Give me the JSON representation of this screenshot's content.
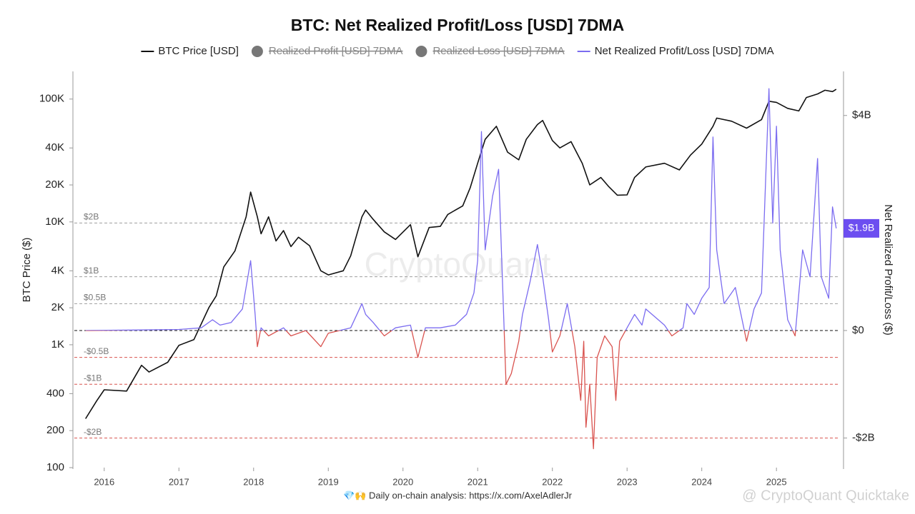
{
  "chart_data": {
    "type": "line",
    "title": "BTC: Net Realized Profit/Loss [USD] 7DMA",
    "y_label": "BTC Price ($)",
    "y2_label": "Net Realized Profit/Loss ($)",
    "watermark": "CryptoQuant",
    "footer": "💎🙌 Daily on-chain analysis: https://x.com/AxelAdlerJr",
    "footer_right": "@ CryptoQuant Quicktake",
    "xlim": [
      2015.6,
      2025.85
    ],
    "xticks": [
      2016,
      2017,
      2018,
      2019,
      2020,
      2021,
      2022,
      2023,
      2024,
      2025
    ],
    "yscale": "log",
    "ylim": [
      100,
      168000
    ],
    "yticks": [
      {
        "value": 100000,
        "label": "100K"
      },
      {
        "value": 40000,
        "label": "40K"
      },
      {
        "value": 20000,
        "label": "20K"
      },
      {
        "value": 10000,
        "label": "10K"
      },
      {
        "value": 4000,
        "label": "4K"
      },
      {
        "value": 2000,
        "label": "2K"
      },
      {
        "value": 1000,
        "label": "1K"
      },
      400,
      200,
      100
    ],
    "y2lim": [
      -2.55,
      4.82
    ],
    "y2ticks": [
      {
        "value": 4,
        "label": "$4B"
      },
      {
        "value": 0,
        "label": "$0"
      },
      {
        "value": -2,
        "label": "-$2B"
      }
    ],
    "reference_lines": [
      {
        "value": 2,
        "label": "$2B",
        "color": "#9e9e9e"
      },
      {
        "value": 1,
        "label": "$1B",
        "color": "#9e9e9e"
      },
      {
        "value": 0.5,
        "label": "$0.5B",
        "color": "#9e9e9e"
      },
      {
        "value": -0.5,
        "label": "-$0.5B",
        "color": "#d9534f"
      },
      {
        "value": -1,
        "label": "-$1B",
        "color": "#d9534f"
      },
      {
        "value": -2,
        "label": "-$2B",
        "color": "#d9534f"
      }
    ],
    "last_value_label": {
      "value": 1.9,
      "label": "$1.9B",
      "color": "#6c4ef0"
    },
    "series": [
      {
        "name": "BTC Price [USD]",
        "color": "#111111",
        "axis": "y",
        "x": [
          2015.75,
          2015.9,
          2016.0,
          2016.3,
          2016.5,
          2016.6,
          2016.85,
          2017.0,
          2017.2,
          2017.4,
          2017.5,
          2017.6,
          2017.75,
          2017.9,
          2017.96,
          2018.05,
          2018.1,
          2018.2,
          2018.3,
          2018.4,
          2018.5,
          2018.6,
          2018.75,
          2018.9,
          2019.0,
          2019.2,
          2019.3,
          2019.45,
          2019.5,
          2019.6,
          2019.75,
          2019.9,
          2020.1,
          2020.2,
          2020.35,
          2020.5,
          2020.6,
          2020.8,
          2020.9,
          2021.0,
          2021.1,
          2021.25,
          2021.4,
          2021.55,
          2021.65,
          2021.8,
          2021.87,
          2022.0,
          2022.1,
          2022.25,
          2022.4,
          2022.5,
          2022.65,
          2022.75,
          2022.87,
          2023.0,
          2023.1,
          2023.25,
          2023.5,
          2023.7,
          2023.85,
          2024.0,
          2024.15,
          2024.2,
          2024.4,
          2024.6,
          2024.8,
          2024.9,
          2025.0,
          2025.15,
          2025.3,
          2025.4,
          2025.55,
          2025.65,
          2025.75,
          2025.8
        ],
        "values": [
          250,
          350,
          430,
          420,
          680,
          600,
          720,
          990,
          1100,
          2000,
          2500,
          4300,
          5800,
          11000,
          17500,
          11000,
          8000,
          11000,
          7000,
          8500,
          6300,
          7500,
          6400,
          4000,
          3700,
          4000,
          5300,
          11000,
          12500,
          10500,
          8300,
          7200,
          9500,
          5200,
          9000,
          9200,
          11500,
          13500,
          19000,
          30000,
          47000,
          60000,
          37000,
          32000,
          47000,
          62000,
          67000,
          46000,
          40000,
          45000,
          30000,
          20000,
          23000,
          19500,
          16500,
          16600,
          23000,
          28000,
          30000,
          26500,
          35000,
          43000,
          60000,
          70000,
          66000,
          58000,
          68000,
          96000,
          94000,
          84000,
          80000,
          103000,
          110000,
          118000,
          115000,
          120000
        ]
      },
      {
        "name": "Realized Profit [USD] 7DMA",
        "color": "#777777",
        "visible": false
      },
      {
        "name": "Realized Loss [USD] 7DMA",
        "color": "#777777",
        "visible": false
      },
      {
        "name": "Net Realized Profit/Loss [USD] 7DMA",
        "color": "#7b6cf0",
        "negative_color": "#d9534f",
        "axis": "y2",
        "x": [
          2015.75,
          2016.5,
          2017.0,
          2017.3,
          2017.45,
          2017.55,
          2017.7,
          2017.85,
          2017.96,
          2018.02,
          2018.05,
          2018.1,
          2018.2,
          2018.4,
          2018.5,
          2018.7,
          2018.9,
          2019.0,
          2019.3,
          2019.45,
          2019.5,
          2019.6,
          2019.75,
          2019.9,
          2020.1,
          2020.2,
          2020.3,
          2020.5,
          2020.7,
          2020.85,
          2020.95,
          2021.0,
          2021.05,
          2021.1,
          2021.2,
          2021.28,
          2021.38,
          2021.45,
          2021.55,
          2021.6,
          2021.7,
          2021.8,
          2021.87,
          2021.95,
          2022.0,
          2022.1,
          2022.2,
          2022.3,
          2022.38,
          2022.42,
          2022.45,
          2022.5,
          2022.55,
          2022.6,
          2022.7,
          2022.8,
          2022.85,
          2022.9,
          2023.0,
          2023.1,
          2023.2,
          2023.25,
          2023.5,
          2023.6,
          2023.75,
          2023.8,
          2023.9,
          2024.0,
          2024.1,
          2024.15,
          2024.2,
          2024.3,
          2024.45,
          2024.6,
          2024.7,
          2024.8,
          2024.9,
          2024.95,
          2025.0,
          2025.05,
          2025.15,
          2025.25,
          2025.35,
          2025.45,
          2025.55,
          2025.6,
          2025.7,
          2025.75,
          2025.8
        ],
        "values": [
          0,
          0.01,
          0.02,
          0.05,
          0.2,
          0.1,
          0.15,
          0.4,
          1.3,
          0.3,
          -0.3,
          0.05,
          -0.1,
          0.05,
          -0.1,
          0,
          -0.3,
          -0.05,
          0.05,
          0.5,
          0.3,
          0.15,
          -0.1,
          0.05,
          0.1,
          -0.5,
          0.05,
          0.05,
          0.1,
          0.3,
          0.7,
          1.3,
          3.7,
          1.5,
          2.5,
          3.0,
          -1.0,
          -0.8,
          -0.2,
          0.3,
          0.9,
          1.6,
          1.0,
          0.2,
          -0.4,
          -0.1,
          0.5,
          -0.3,
          -1.3,
          -0.2,
          -1.8,
          -1.0,
          -2.2,
          -0.5,
          -0.1,
          -0.3,
          -1.3,
          -0.2,
          0.05,
          0.3,
          0.1,
          0.4,
          0.1,
          -0.1,
          0.05,
          0.5,
          0.3,
          0.6,
          0.8,
          3.6,
          1.5,
          0.5,
          0.8,
          -0.2,
          0.4,
          0.7,
          4.5,
          2.0,
          3.8,
          1.5,
          0.2,
          -0.1,
          1.5,
          1.0,
          3.2,
          1.0,
          0.6,
          2.3,
          1.9
        ]
      }
    ]
  }
}
